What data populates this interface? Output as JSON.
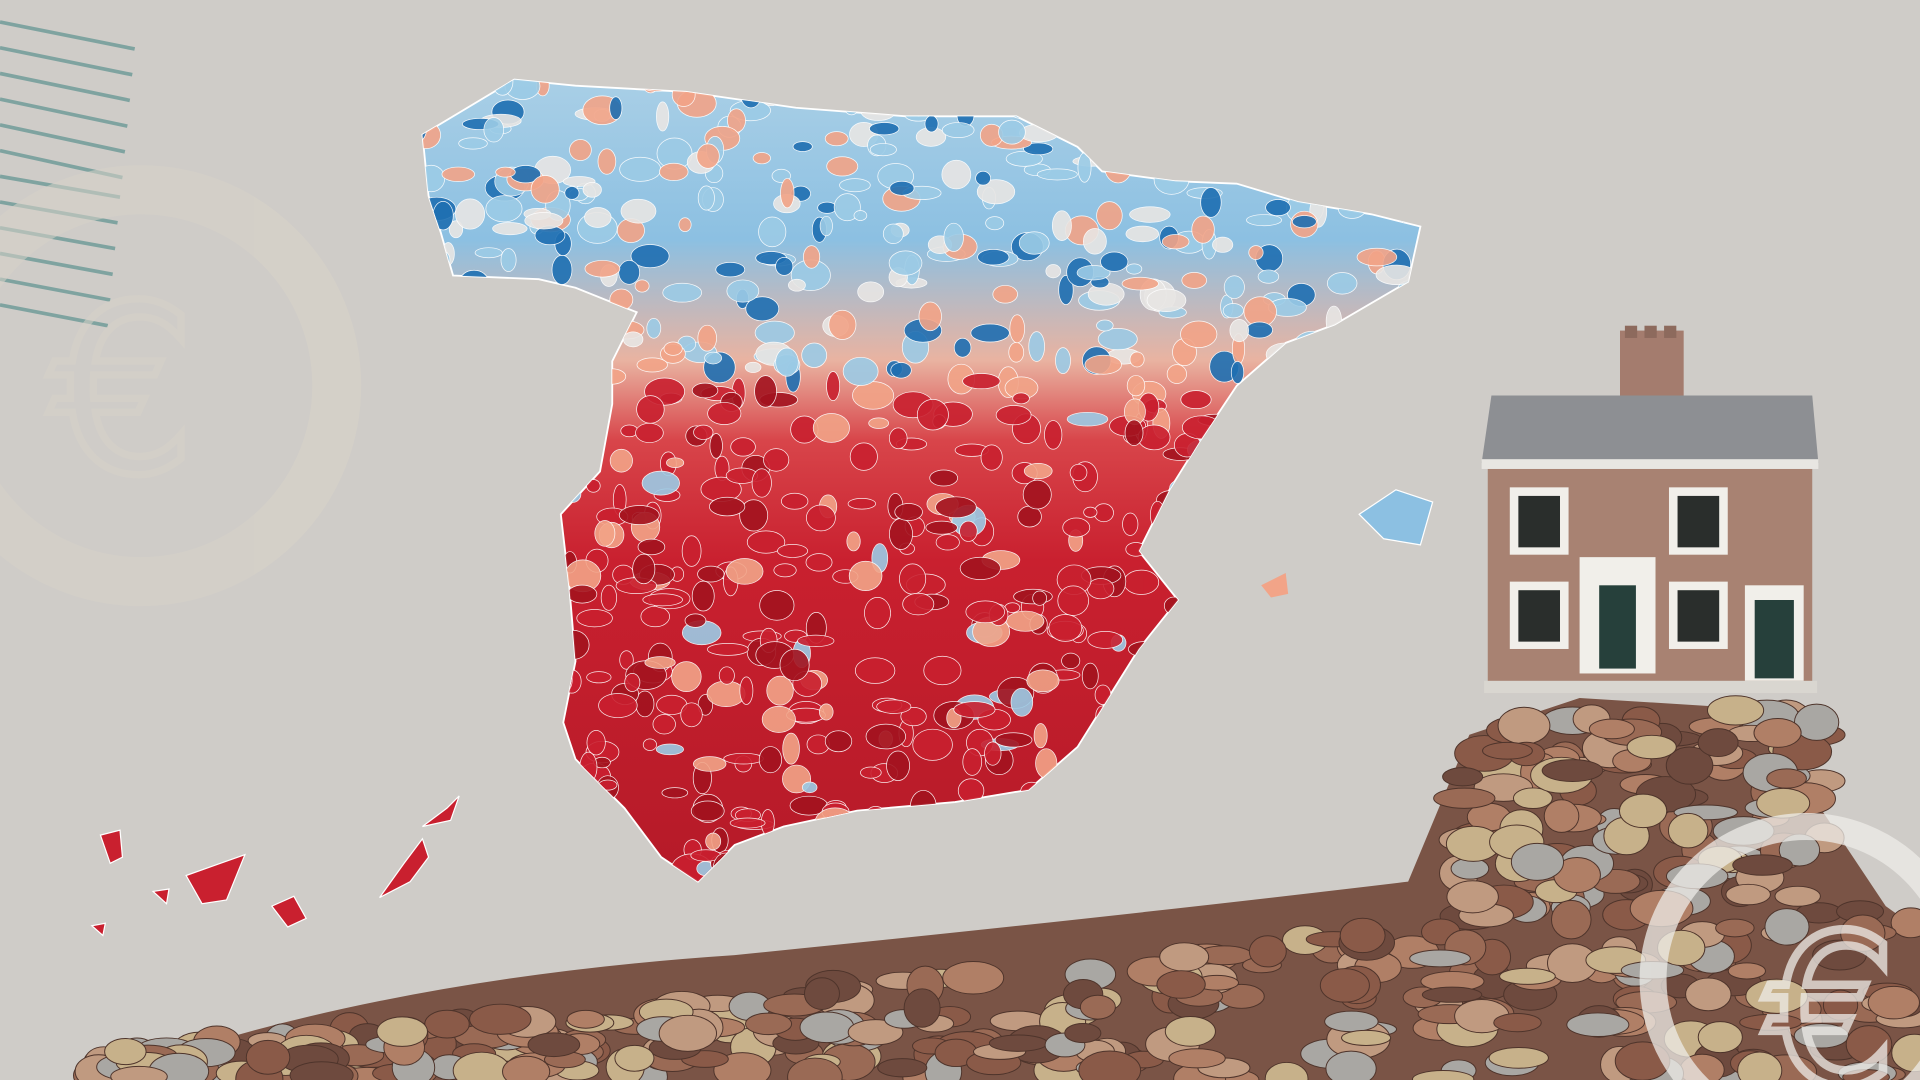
{
  "scene": {
    "description_type": "editorial-illustration",
    "colors": {
      "background": "#cfccc8",
      "map_blue_dark": "#1f6fb2",
      "map_blue_light": "#9ccbe6",
      "map_salmon": "#f2a488",
      "map_red": "#c9202f",
      "map_red_dark": "#a3131f",
      "stripes": "#7fa3a0",
      "coin_copper": "#9a6a55",
      "house_brick": "#a07b6c",
      "roof": "#8a8c90"
    },
    "icons": [
      "euro-icon",
      "euro-icon"
    ]
  }
}
